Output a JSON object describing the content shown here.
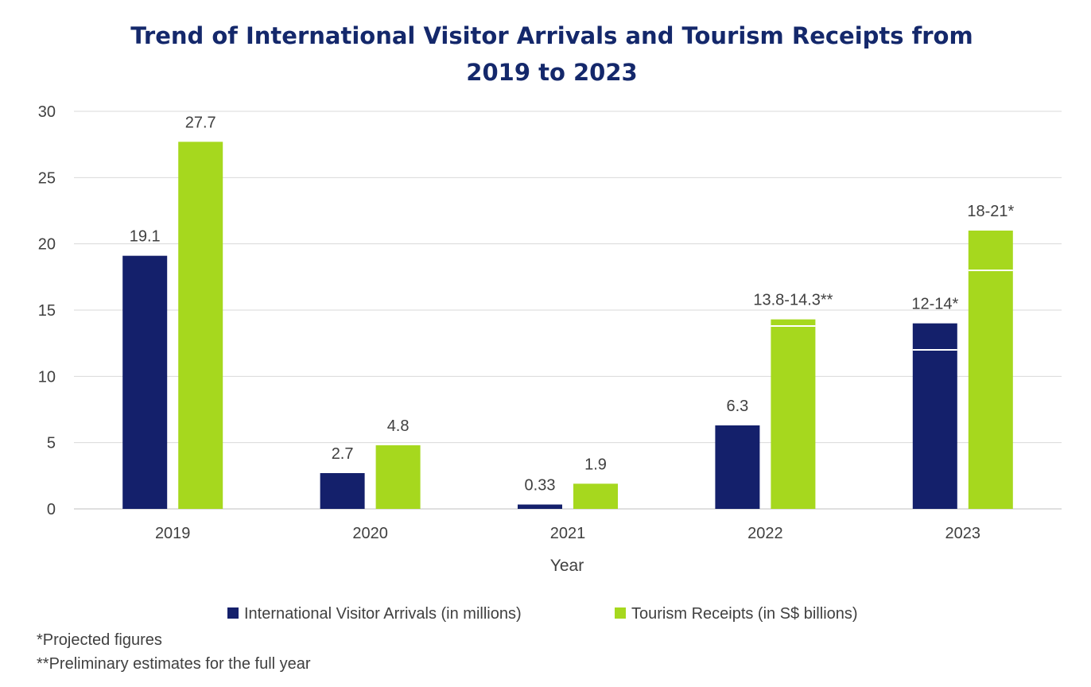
{
  "chart_data": {
    "type": "bar",
    "title": "Trend of International Visitor Arrivals and Tourism Receipts from 2019 to 2023",
    "title_lines": [
      "Trend of International Visitor Arrivals and Tourism Receipts from",
      "2019 to 2023"
    ],
    "xlabel": "Year",
    "ylabel": "",
    "ylim": [
      0,
      30
    ],
    "yticks": [
      0,
      5,
      10,
      15,
      20,
      25,
      30
    ],
    "grid": true,
    "legend_position": "bottom",
    "categories": [
      "2019",
      "2020",
      "2021",
      "2022",
      "2023"
    ],
    "series": [
      {
        "name": "International Visitor Arrivals (in millions)",
        "color": "#14206b",
        "values": [
          19.1,
          2.7,
          0.33,
          6.3,
          14
        ],
        "range_low": [
          null,
          null,
          null,
          null,
          12
        ],
        "labels": [
          "19.1",
          "2.7",
          "0.33",
          "6.3",
          "12-14*"
        ]
      },
      {
        "name": "Tourism Receipts (in S$ billions)",
        "color": "#a6d81e",
        "values": [
          27.7,
          4.8,
          1.9,
          14.3,
          21
        ],
        "range_low": [
          null,
          null,
          null,
          13.8,
          18
        ],
        "labels": [
          "27.7",
          "4.8",
          "1.9",
          "13.8-14.3**",
          "18-21*"
        ]
      }
    ]
  },
  "footnotes": {
    "projected": "*Projected figures",
    "preliminary": "**Preliminary estimates for the full year"
  }
}
